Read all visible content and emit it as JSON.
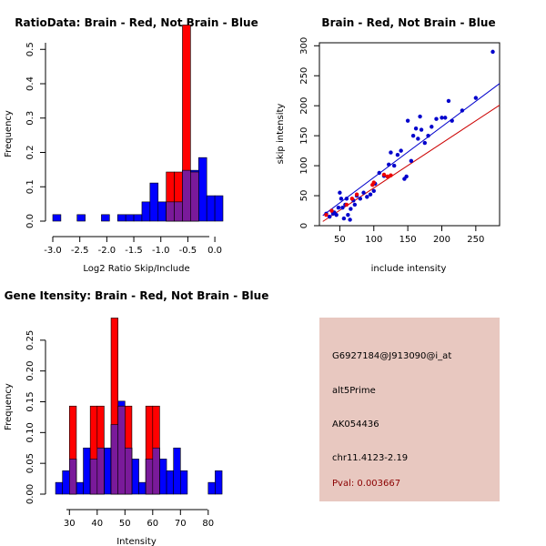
{
  "chart_data": [
    {
      "type": "bar",
      "title": "RatioData: Brain - Red, Not Brain - Blue",
      "xlabel": "Log2 Ratio Skip/Include",
      "ylabel": "Frequency",
      "xlim": [
        -3.0,
        0.15
      ],
      "ylim": [
        0,
        0.6
      ],
      "xticks": [
        "-3.0",
        "-2.5",
        "-2.0",
        "-1.5",
        "-1.0",
        "-0.5",
        "0.0"
      ],
      "yticks": [
        "0.0",
        "0.1",
        "0.2",
        "0.3",
        "0.4",
        "0.5"
      ],
      "bin_width": 0.15,
      "series": [
        {
          "name": "Not Brain",
          "color": "#0000ff",
          "bins": [
            [
              -3.0,
              0.019
            ],
            [
              -2.85,
              0
            ],
            [
              -2.7,
              0
            ],
            [
              -2.55,
              0.019
            ],
            [
              -2.4,
              0
            ],
            [
              -2.25,
              0
            ],
            [
              -2.1,
              0.019
            ],
            [
              -1.95,
              0
            ],
            [
              -1.8,
              0.019
            ],
            [
              -1.65,
              0.019
            ],
            [
              -1.5,
              0.019
            ],
            [
              -1.35,
              0.056
            ],
            [
              -1.2,
              0.111
            ],
            [
              -1.05,
              0.056
            ],
            [
              -0.9,
              0.056
            ],
            [
              -0.75,
              0.056
            ],
            [
              -0.6,
              0.148
            ],
            [
              -0.45,
              0.148
            ],
            [
              -0.3,
              0.185
            ],
            [
              -0.15,
              0.074
            ],
            [
              0.0,
              0.074
            ]
          ]
        },
        {
          "name": "Brain",
          "color": "#ff0000",
          "bins": [
            [
              -0.9,
              0.143
            ],
            [
              -0.75,
              0.143
            ],
            [
              -0.6,
              0.571
            ],
            [
              -0.45,
              0.143
            ]
          ]
        }
      ]
    },
    {
      "type": "scatter",
      "title": "Brain - Red, Not Brain - Blue",
      "xlabel": "include intensity",
      "ylabel": "skip intensity",
      "xlim": [
        20,
        285
      ],
      "ylim": [
        0,
        305
      ],
      "xticks": [
        "50",
        "100",
        "150",
        "200",
        "250"
      ],
      "yticks": [
        "0",
        "50",
        "100",
        "150",
        "200",
        "250",
        "300"
      ],
      "series": [
        {
          "name": "Not Brain",
          "color": "#0000cc",
          "points": [
            [
              30,
              20
            ],
            [
              35,
              15
            ],
            [
              38,
              25
            ],
            [
              40,
              20
            ],
            [
              42,
              22
            ],
            [
              45,
              18
            ],
            [
              48,
              30
            ],
            [
              50,
              55
            ],
            [
              52,
              45
            ],
            [
              54,
              30
            ],
            [
              56,
              12
            ],
            [
              58,
              35
            ],
            [
              60,
              45
            ],
            [
              62,
              18
            ],
            [
              65,
              10
            ],
            [
              66,
              28
            ],
            [
              70,
              42
            ],
            [
              72,
              35
            ],
            [
              75,
              50
            ],
            [
              80,
              45
            ],
            [
              85,
              55
            ],
            [
              90,
              48
            ],
            [
              95,
              52
            ],
            [
              100,
              58
            ],
            [
              102,
              70
            ],
            [
              108,
              88
            ],
            [
              115,
              83
            ],
            [
              122,
              102
            ],
            [
              125,
              122
            ],
            [
              130,
              100
            ],
            [
              135,
              118
            ],
            [
              140,
              125
            ],
            [
              145,
              78
            ],
            [
              148,
              82
            ],
            [
              150,
              175
            ],
            [
              155,
              108
            ],
            [
              158,
              150
            ],
            [
              162,
              162
            ],
            [
              165,
              145
            ],
            [
              168,
              182
            ],
            [
              170,
              160
            ],
            [
              175,
              138
            ],
            [
              180,
              150
            ],
            [
              185,
              165
            ],
            [
              192,
              178
            ],
            [
              200,
              180
            ],
            [
              205,
              180
            ],
            [
              210,
              208
            ],
            [
              215,
              175
            ],
            [
              230,
              192
            ],
            [
              250,
              213
            ],
            [
              275,
              290
            ]
          ]
        },
        {
          "name": "Brain",
          "color": "#ee0000",
          "points": [
            [
              30,
              18
            ],
            [
              38,
              25
            ],
            [
              60,
              35
            ],
            [
              68,
              45
            ],
            [
              75,
              52
            ],
            [
              98,
              68
            ],
            [
              100,
              72
            ],
            [
              115,
              85
            ],
            [
              120,
              82
            ],
            [
              125,
              84
            ]
          ]
        }
      ],
      "fit_lines": [
        {
          "name": "Not Brain fit",
          "color": "#0000cc",
          "from": [
            25,
            17
          ],
          "to": [
            285,
            237
          ]
        },
        {
          "name": "Brain fit",
          "color": "#cc0000",
          "from": [
            25,
            7
          ],
          "to": [
            285,
            201
          ]
        }
      ]
    },
    {
      "type": "bar",
      "title": "Gene Itensity: Brain - Red, Not Brain - Blue",
      "xlabel": "Intensity",
      "ylabel": "Frequency",
      "xlim": [
        24,
        84
      ],
      "ylim": [
        0,
        0.3
      ],
      "xticks": [
        "30",
        "40",
        "50",
        "60",
        "70",
        "80"
      ],
      "yticks": [
        "0.00",
        "0.05",
        "0.10",
        "0.15",
        "0.20",
        "0.25"
      ],
      "bin_width": 2.5,
      "series": [
        {
          "name": "Not Brain",
          "color": "#0000ff",
          "bins": [
            [
              25,
              0.019
            ],
            [
              27.5,
              0.038
            ],
            [
              30,
              0.057
            ],
            [
              32.5,
              0.019
            ],
            [
              35,
              0.075
            ],
            [
              37.5,
              0.057
            ],
            [
              40,
              0.075
            ],
            [
              42.5,
              0.075
            ],
            [
              45,
              0.113
            ],
            [
              47.5,
              0.151
            ],
            [
              50,
              0.075
            ],
            [
              52.5,
              0.057
            ],
            [
              55,
              0.019
            ],
            [
              57.5,
              0.057
            ],
            [
              60,
              0.075
            ],
            [
              62.5,
              0.057
            ],
            [
              65,
              0.038
            ],
            [
              67.5,
              0.075
            ],
            [
              70,
              0.038
            ],
            [
              72.5,
              0
            ],
            [
              75,
              0
            ],
            [
              77.5,
              0
            ],
            [
              80,
              0.019
            ],
            [
              82.5,
              0.038
            ]
          ]
        },
        {
          "name": "Brain",
          "color": "#ff0000",
          "bins": [
            [
              30,
              0.143
            ],
            [
              37.5,
              0.143
            ],
            [
              40,
              0.143
            ],
            [
              45,
              0.286
            ],
            [
              47.5,
              0.143
            ],
            [
              50,
              0.143
            ],
            [
              57.5,
              0.143
            ],
            [
              60,
              0.143
            ]
          ]
        }
      ]
    }
  ],
  "info": {
    "probe": "G6927184@J913090@i_at",
    "event": "alt5Prime",
    "accession": "AK054436",
    "location": "chr11.4123-2.19",
    "pval": "Pval: 0.003667"
  }
}
